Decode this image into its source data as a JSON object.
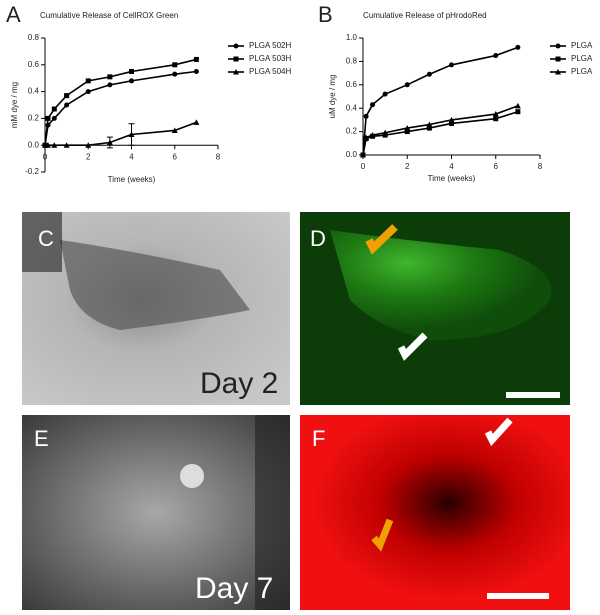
{
  "chart_data": [
    {
      "type": "line",
      "panel": "A",
      "title": "Cumulative Release of CellROX Green",
      "x_label": "Time (weeks)",
      "y_label": "mM dye / mg",
      "x": [
        0,
        0.14,
        0.43,
        1,
        2,
        3,
        4,
        6,
        7
      ],
      "xlim": [
        0,
        8
      ],
      "xticks": [
        0,
        2,
        4,
        6,
        8
      ],
      "ylim": [
        -0.2,
        0.8
      ],
      "yticks": [
        -0.2,
        {
          "value": 0,
          "label": "0.0"
        },
        0.2,
        0.4,
        0.6,
        0.8
      ],
      "legend": "right",
      "series": [
        {
          "name": "PLGA 502H",
          "color": "#000000",
          "marker": "circle",
          "values": [
            0,
            0.15,
            0.2,
            0.3,
            0.4,
            0.45,
            0.48,
            0.53,
            0.55
          ]
        },
        {
          "name": "PLGA 503H",
          "color": "#000000",
          "marker": "square",
          "values": [
            0,
            0.2,
            0.27,
            0.37,
            0.48,
            0.51,
            0.55,
            0.6,
            0.64
          ]
        },
        {
          "name": "PLGA 504H",
          "color": "#000000",
          "marker": "triangle",
          "values": [
            0,
            0,
            0,
            0,
            0,
            0.02,
            0.08,
            0.11,
            0.17
          ],
          "errors": [
            null,
            null,
            null,
            null,
            null,
            0.04,
            0.08,
            null,
            null
          ]
        }
      ]
    },
    {
      "type": "line",
      "panel": "B",
      "title": "Cumulative Release of pHrodoRed",
      "x_label": "Time (weeks)",
      "y_label": "uM dye / mg",
      "x": [
        0,
        0.14,
        0.43,
        1,
        2,
        3,
        4,
        6,
        7
      ],
      "xlim": [
        0,
        8
      ],
      "xticks": [
        0,
        2,
        4,
        6,
        8
      ],
      "ylim": [
        0,
        1
      ],
      "yticks": [
        {
          "value": 0,
          "label": "0.0"
        },
        0.2,
        0.4,
        0.6,
        0.8,
        {
          "value": 1,
          "label": "1.0"
        }
      ],
      "legend": "right",
      "series": [
        {
          "name": "PLGA",
          "color": "#000000",
          "marker": "circle",
          "values": [
            0,
            0.33,
            0.43,
            0.52,
            0.6,
            0.69,
            0.77,
            0.85,
            0.92
          ]
        },
        {
          "name": "PLGA",
          "color": "#000000",
          "marker": "square",
          "values": [
            0,
            0.14,
            0.16,
            0.17,
            0.2,
            0.23,
            0.27,
            0.31,
            0.37
          ]
        },
        {
          "name": "PLGA",
          "color": "#000000",
          "marker": "triangle",
          "values": [
            0,
            0.15,
            0.17,
            0.19,
            0.23,
            0.26,
            0.3,
            0.35,
            0.42
          ]
        }
      ]
    }
  ],
  "panels": [
    {
      "label": "C",
      "caption": "Day 2"
    },
    {
      "label": "D"
    },
    {
      "label": "E",
      "caption": "Day 7"
    },
    {
      "label": "F"
    }
  ]
}
